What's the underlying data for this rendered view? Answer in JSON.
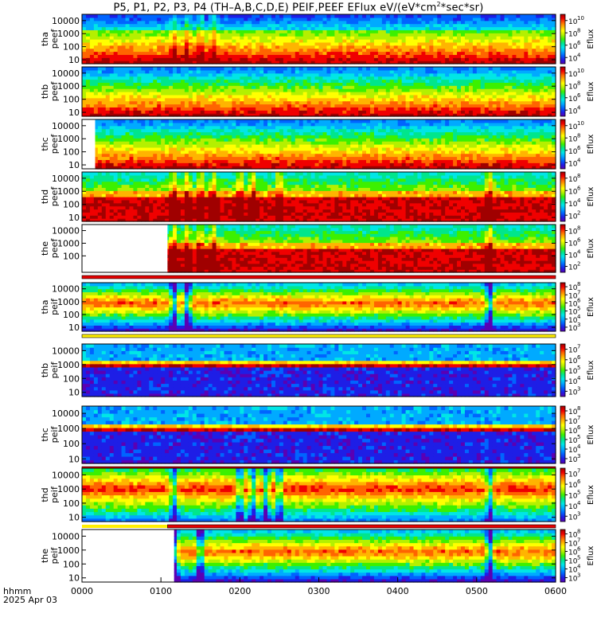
{
  "title": {
    "pre": "P5, P1, P2, P3, P4 (TH–A,B,C,D,E) PEIF,PEEF EFlux eV/(eV*cm",
    "sup": "2",
    "post": "*sec*sr)"
  },
  "time_axis": {
    "ticks": [
      "0000",
      "0100",
      "0200",
      "0300",
      "0400",
      "0500",
      "0600"
    ],
    "label": "hhmm",
    "date": "2025 Apr 03"
  },
  "colors": {
    "colormap": [
      "#ffffff",
      "#5a00b4",
      "#1e1ee6",
      "#0064ff",
      "#00aaff",
      "#00e6e6",
      "#00e68c",
      "#3cf000",
      "#b4f000",
      "#ffff00",
      "#ffb400",
      "#ff6400",
      "#f00000",
      "#a00000"
    ],
    "flag_red": "#e60000",
    "flag_yellow": "#ffee00"
  },
  "chart_data": {
    "type": "heatmap",
    "x_unit": "hhmm",
    "x_range": [
      "0000",
      "0600"
    ],
    "y_scale": "log",
    "y_range": [
      5,
      30000
    ],
    "panels": [
      {
        "id": "tha-peef",
        "label1": "tha",
        "label2": "peef",
        "yticks": [
          "10000",
          "1000",
          "100",
          "10"
        ],
        "cb_label": "Eflux",
        "cb_ticks": [
          "10",
          "10",
          "10",
          "10"
        ],
        "cb_exps": [
          "10",
          "8",
          "6",
          "4"
        ],
        "cb_range_exp": [
          3,
          11
        ],
        "profile": "electron",
        "data_start_hhmm": "0000",
        "bursts_hhmm": [
          "0110",
          "0120",
          "0130",
          "0140"
        ],
        "flag": "none"
      },
      {
        "id": "thb-peef",
        "label1": "thb",
        "label2": "peef",
        "yticks": [
          "10000",
          "1000",
          "100",
          "10"
        ],
        "cb_label": "Eflux",
        "cb_ticks": [
          "10",
          "10",
          "10",
          "10"
        ],
        "cb_exps": [
          "10",
          "8",
          "6",
          "4"
        ],
        "cb_range_exp": [
          3,
          11
        ],
        "profile": "electron-quiet",
        "data_start_hhmm": "0000",
        "bursts_hhmm": [],
        "flag": "none"
      },
      {
        "id": "thc-peef",
        "label1": "thc",
        "label2": "peef",
        "yticks": [
          "10000",
          "1000",
          "100",
          "10"
        ],
        "cb_label": "Eflux",
        "cb_ticks": [
          "10",
          "10",
          "10",
          "10"
        ],
        "cb_exps": [
          "10",
          "8",
          "6",
          "4"
        ],
        "cb_range_exp": [
          3,
          11
        ],
        "profile": "electron-quiet",
        "data_start_hhmm": "0010",
        "bursts_hhmm": [],
        "flag": "none"
      },
      {
        "id": "thd-peef",
        "label1": "thd",
        "label2": "peef",
        "yticks": [
          "10000",
          "1000",
          "100",
          "10"
        ],
        "cb_label": "Eflux",
        "cb_ticks": [
          "10",
          "10",
          "10",
          "10"
        ],
        "cb_exps": [
          "8",
          "6",
          "4",
          "2"
        ],
        "cb_range_exp": [
          1,
          9
        ],
        "profile": "electron-hot",
        "data_start_hhmm": "0000",
        "bursts_hhmm": [
          "0110",
          "0120",
          "0130",
          "0140",
          "0200",
          "0210",
          "0230",
          "0510"
        ],
        "flag": "none"
      },
      {
        "id": "the-peef",
        "label1": "the",
        "label2": "peef",
        "yticks": [
          "10000",
          "1000",
          "100"
        ],
        "cb_label": "Eflux",
        "cb_ticks": [
          "10",
          "10",
          "10",
          "10"
        ],
        "cb_exps": [
          "8",
          "6",
          "4",
          "2"
        ],
        "cb_range_exp": [
          1,
          9
        ],
        "profile": "electron-hot",
        "data_start_hhmm": "0105",
        "bursts_hhmm": [
          "0110",
          "0120",
          "0130",
          "0140",
          "0510"
        ],
        "flag": "red-bar"
      },
      {
        "id": "tha-peif",
        "label1": "tha",
        "label2": "peif",
        "yticks": [
          "10000",
          "1000",
          "100",
          "10"
        ],
        "cb_label": "Eflux",
        "cb_ticks": [
          "10",
          "10",
          "10",
          "10",
          "10",
          "10"
        ],
        "cb_exps": [
          "8",
          "7",
          "6",
          "5",
          "4",
          "3"
        ],
        "cb_range_exp": [
          2.5,
          8.5
        ],
        "profile": "ion",
        "data_start_hhmm": "0000",
        "bursts_hhmm": [
          "0110",
          "0120",
          "0510"
        ],
        "flag": "yellow-bar"
      },
      {
        "id": "thb-peif",
        "label1": "thb",
        "label2": "peif",
        "yticks": [
          "10000",
          "1000",
          "100",
          "10"
        ],
        "cb_label": "Eflux",
        "cb_ticks": [
          "10",
          "10",
          "10",
          "10",
          "10"
        ],
        "cb_exps": [
          "7",
          "6",
          "5",
          "4",
          "3"
        ],
        "cb_range_exp": [
          2.5,
          7.5
        ],
        "profile": "ion-band",
        "data_start_hhmm": "0000",
        "bursts_hhmm": [],
        "flag": "none"
      },
      {
        "id": "thc-peif",
        "label1": "thc",
        "label2": "peif",
        "yticks": [
          "10000",
          "1000",
          "100",
          "10"
        ],
        "cb_label": "Eflux",
        "cb_ticks": [
          "10",
          "10",
          "10",
          "10",
          "10",
          "10"
        ],
        "cb_exps": [
          "8",
          "7",
          "6",
          "5",
          "4",
          "3"
        ],
        "cb_range_exp": [
          2.5,
          8.5
        ],
        "profile": "ion-band",
        "data_start_hhmm": "0000",
        "bursts_hhmm": [],
        "flag": "red-bar"
      },
      {
        "id": "thd-peif",
        "label1": "thd",
        "label2": "peif",
        "yticks": [
          "10000",
          "1000",
          "100",
          "10"
        ],
        "cb_label": "Eflux",
        "cb_ticks": [
          "10",
          "10",
          "10",
          "10",
          "10"
        ],
        "cb_exps": [
          "7",
          "6",
          "5",
          "4",
          "3"
        ],
        "cb_range_exp": [
          2.5,
          7.5
        ],
        "profile": "ion-hot",
        "data_start_hhmm": "0000",
        "bursts_hhmm": [
          "0110",
          "0200",
          "0210",
          "0220",
          "0230",
          "0510"
        ],
        "flag": "yellow-red-bar"
      },
      {
        "id": "the-peif",
        "label1": "the",
        "label2": "peif",
        "yticks": [
          "10000",
          "1000",
          "100",
          "10"
        ],
        "cb_label": "Eflux",
        "cb_ticks": [
          "10",
          "10",
          "10",
          "10",
          "10",
          "10"
        ],
        "cb_exps": [
          "8",
          "7",
          "6",
          "5",
          "4",
          "3"
        ],
        "cb_range_exp": [
          2.5,
          8.5
        ],
        "profile": "ion",
        "data_start_hhmm": "0110",
        "bursts_hhmm": [
          "0110",
          "0130",
          "0510"
        ],
        "flag": "none"
      }
    ]
  }
}
